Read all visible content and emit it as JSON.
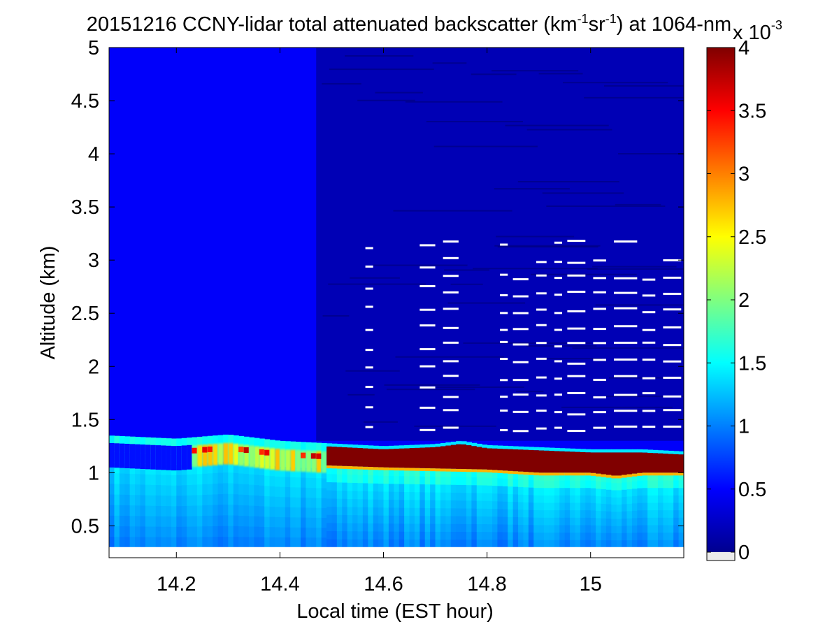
{
  "chart_data": {
    "type": "heatmap",
    "title": {
      "prefix": "20151216 CCNY-lidar total attenuated backscatter (km",
      "sup1": "-1",
      "mid": "sr",
      "sup2": "-1",
      "suffix": ") at 1064-nm"
    },
    "xlabel": "Local time (EST hour)",
    "ylabel": "Altitude (km)",
    "xlim": [
      14.07,
      15.18
    ],
    "ylim": [
      0.2,
      5.0
    ],
    "x_ticks": [
      14.2,
      14.4,
      14.6,
      14.8,
      15
    ],
    "x_tick_labels": [
      "14.2",
      "14.4",
      "14.6",
      "14.8",
      "15"
    ],
    "y_ticks": [
      0.5,
      1,
      1.5,
      2,
      2.5,
      3,
      3.5,
      4,
      4.5,
      5
    ],
    "y_tick_labels": [
      "0.5",
      "1",
      "1.5",
      "2",
      "2.5",
      "3",
      "3.5",
      "4",
      "4.5",
      "5"
    ],
    "data_bottom_altitude_km": 0.3,
    "colormap": "jet",
    "colorbar": {
      "range": [
        0,
        0.004
      ],
      "ticks": [
        0,
        0.5,
        1,
        1.5,
        2,
        2.5,
        3,
        3.5,
        4
      ],
      "tick_labels": [
        "0",
        "0.5",
        "1",
        "1.5",
        "2",
        "2.5",
        "3",
        "3.5",
        "4"
      ],
      "multiplier": {
        "base": "x 10",
        "exp": "-3"
      }
    },
    "features": {
      "boundary_layer_top_km": [
        [
          14.07,
          1.35
        ],
        [
          14.2,
          1.32
        ],
        [
          14.3,
          1.36
        ],
        [
          14.4,
          1.3
        ],
        [
          14.48,
          1.28
        ],
        [
          14.6,
          1.25
        ],
        [
          14.7,
          1.27
        ],
        [
          14.75,
          1.3
        ],
        [
          14.8,
          1.26
        ],
        [
          14.9,
          1.24
        ],
        [
          15.0,
          1.22
        ],
        [
          15.1,
          1.22
        ],
        [
          15.18,
          1.2
        ]
      ],
      "dense_layer_start_hour": 14.48,
      "dense_layer_base_km": [
        [
          14.48,
          1.07
        ],
        [
          14.6,
          1.05
        ],
        [
          14.7,
          1.04
        ],
        [
          14.8,
          1.03
        ],
        [
          14.9,
          1.0
        ],
        [
          15.0,
          1.0
        ],
        [
          15.05,
          0.97
        ],
        [
          15.1,
          1.0
        ],
        [
          15.18,
          1.0
        ]
      ]
    }
  }
}
